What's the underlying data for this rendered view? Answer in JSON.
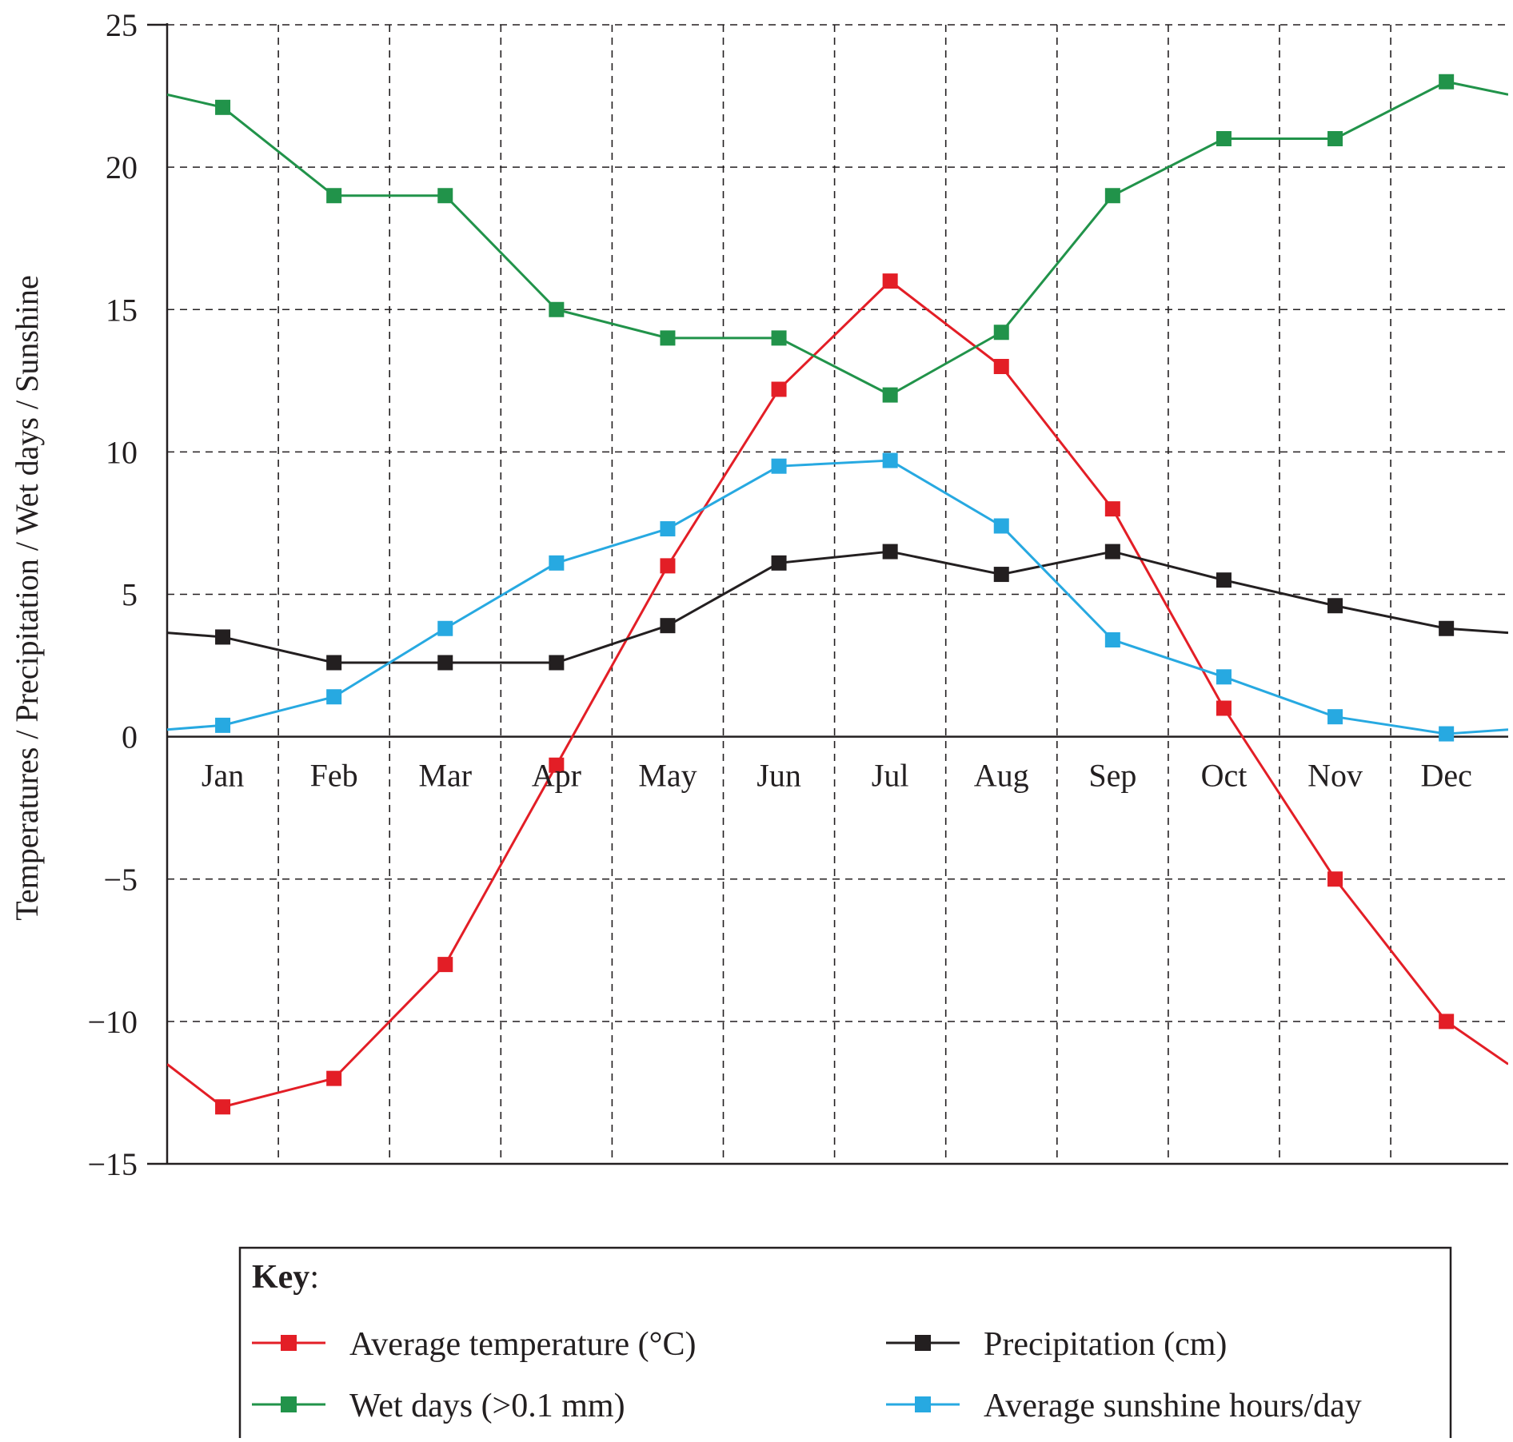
{
  "chart_data": {
    "type": "line",
    "ylabel": "Temperatures / Precipitation / Wet days / Sunshine",
    "xlabel": "",
    "categories": [
      "Jan",
      "Feb",
      "Mar",
      "Apr",
      "May",
      "Jun",
      "Jul",
      "Aug",
      "Sep",
      "Oct",
      "Nov",
      "Dec"
    ],
    "ylim": [
      -15,
      25
    ],
    "yticks": [
      25,
      20,
      15,
      10,
      5,
      0,
      -5,
      -10,
      -15
    ],
    "ytick_labels": [
      "25",
      "20",
      "15",
      "10",
      "5",
      "0",
      "−5",
      "−10",
      "−15"
    ],
    "grid": true,
    "legend_position": "bottom",
    "series": [
      {
        "name": "Average temperature (°C)",
        "color": "#e31e26",
        "marker": "square",
        "values": [
          -13,
          -12,
          -8,
          -1,
          6,
          12.2,
          16,
          13,
          8,
          1,
          -5,
          -10
        ]
      },
      {
        "name": "Precipitation (cm)",
        "color": "#231f20",
        "marker": "square",
        "values": [
          3.5,
          2.6,
          2.6,
          2.6,
          3.9,
          6.1,
          6.5,
          5.7,
          6.5,
          5.5,
          4.6,
          3.8
        ]
      },
      {
        "name": "Wet days (>0.1 mm)",
        "color": "#21934a",
        "marker": "square",
        "values": [
          22.1,
          19,
          19,
          15,
          14,
          14,
          12,
          14.2,
          19,
          21,
          21,
          23
        ]
      },
      {
        "name": "Average sunshine hours/day",
        "color": "#27a9e1",
        "marker": "square",
        "values": [
          0.4,
          1.4,
          3.8,
          6.1,
          7.3,
          9.5,
          9.7,
          7.4,
          3.4,
          2.1,
          0.7,
          0.1
        ]
      }
    ]
  },
  "legend": {
    "title": "Key",
    "title_suffix": ":"
  }
}
